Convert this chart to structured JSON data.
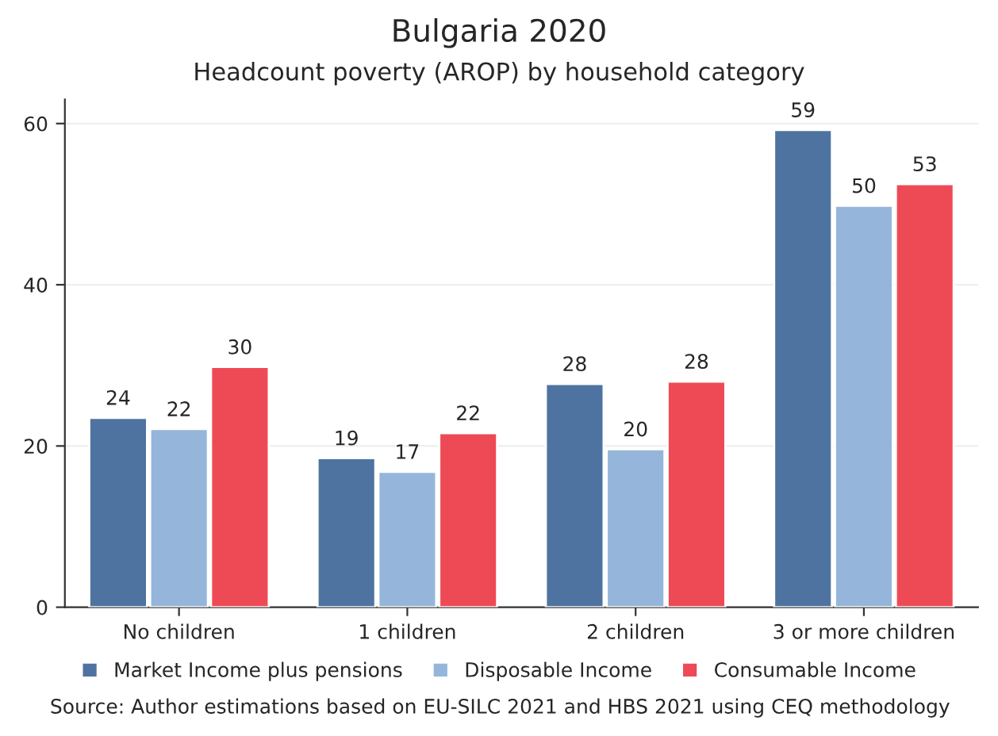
{
  "chart_data": {
    "type": "bar",
    "title": "Bulgaria 2020",
    "subtitle": "Headcount poverty (AROP) by household category",
    "categories": [
      "No children",
      "1 children",
      "2 children",
      "3 or more children"
    ],
    "series": [
      {
        "name": "Market Income plus pensions",
        "color": "#4e73a0",
        "values": [
          23.5,
          18.5,
          27.7,
          59.2
        ],
        "value_labels": [
          "24",
          "19",
          "28",
          "59"
        ]
      },
      {
        "name": "Disposable Income",
        "color": "#95b6da",
        "values": [
          22.1,
          16.8,
          19.6,
          49.8
        ],
        "value_labels": [
          "22",
          "17",
          "20",
          "50"
        ]
      },
      {
        "name": "Consumable Income",
        "color": "#ee4a55",
        "values": [
          29.8,
          21.6,
          28.0,
          52.5
        ],
        "value_labels": [
          "30",
          "22",
          "28",
          "53"
        ]
      }
    ],
    "ylim": [
      0,
      63
    ],
    "yticks": [
      0,
      20,
      40,
      60
    ],
    "grid": "y",
    "legend": "bottom",
    "annotations": [
      "Source: Author estimations based on EU-SILC 2021 and HBS 2021 using CEQ methodology"
    ]
  }
}
